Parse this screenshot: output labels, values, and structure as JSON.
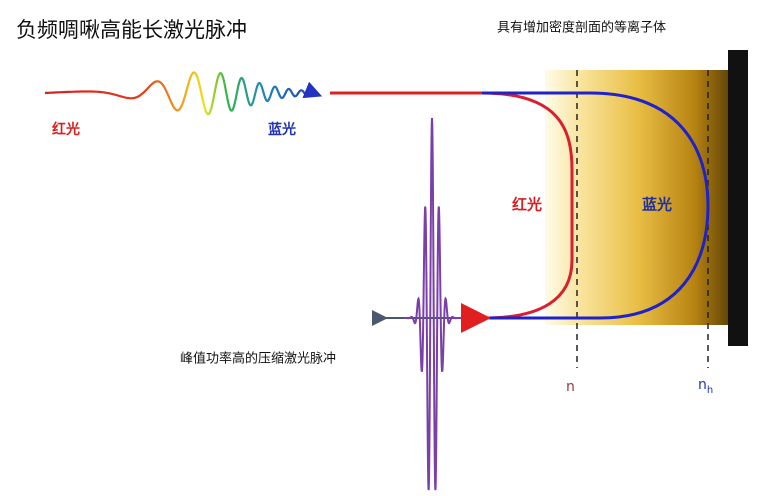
{
  "title": "负频啁啾高能长激光脉冲",
  "plasma_label": "具有增加密度剖面的等离子体",
  "input_pulse": {
    "red_label": "红光",
    "blue_label": "蓝光"
  },
  "reflection": {
    "red_label": "红光",
    "blue_label": "蓝光"
  },
  "output_label": "峰值功率高的压缩激光脉冲",
  "density_markers": {
    "n": "n",
    "n_h": {
      "base": "n",
      "sub": "h"
    }
  }
}
